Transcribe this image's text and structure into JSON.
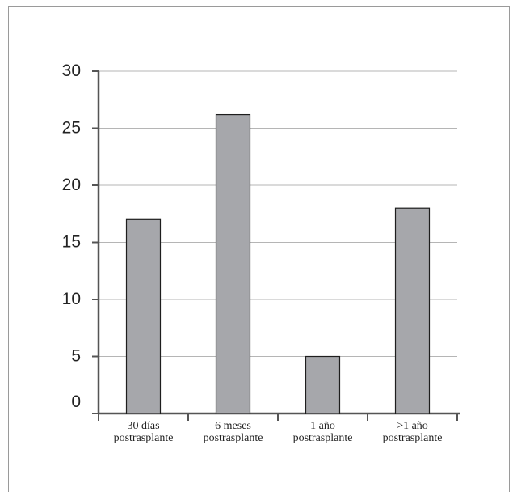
{
  "chart_data": {
    "type": "bar",
    "title": "",
    "xlabel": "",
    "ylabel": "",
    "categories": [
      [
        "30 días",
        "postrasplante"
      ],
      [
        "6 meses",
        "postrasplante"
      ],
      [
        "1 año",
        "postrasplante"
      ],
      [
        ">1 año",
        "postrasplante"
      ]
    ],
    "values": [
      17,
      26.2,
      5,
      18
    ],
    "ylim": [
      0,
      30
    ],
    "yticks": [
      "0",
      "5",
      "10",
      "15",
      "20",
      "25",
      "30"
    ],
    "grid": true,
    "colors": {
      "bar": "#a6a7ab",
      "bar_edge": "#1e1e1e",
      "axis": "#555555",
      "grid": "#b5b5b5"
    }
  }
}
